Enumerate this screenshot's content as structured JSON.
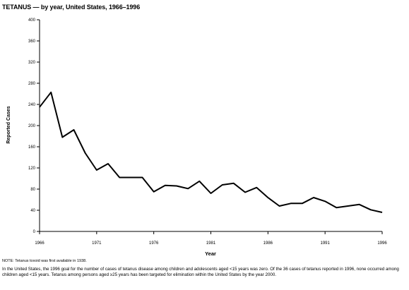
{
  "title": "TETANUS — by year, United States, 1966–1996",
  "footnote": "NOTE: Tetanus toxoid was first available in 1938.",
  "caption": "In the United States, the 1996 goal for the number of cases of tetanus disease among children and adolescents aged <15 years was zero. Of the 36 cases of tetanus reported in 1996, none occurred among children aged <15 years. Tetanus among persons aged ≥25 years has been targeted for elimination within the United States by the year 2000.",
  "chart_data": {
    "type": "line",
    "title": "TETANUS — by year, United States, 1966–1996",
    "xlabel": "Year",
    "ylabel": "Reported Cases",
    "xlim": [
      1966,
      1996
    ],
    "ylim": [
      0,
      400
    ],
    "x_ticks": [
      1966,
      1971,
      1976,
      1981,
      1986,
      1991,
      1996
    ],
    "y_ticks": [
      0,
      40,
      80,
      120,
      160,
      200,
      240,
      280,
      320,
      360,
      400
    ],
    "grid": false,
    "x": [
      1966,
      1967,
      1968,
      1969,
      1970,
      1971,
      1972,
      1973,
      1974,
      1975,
      1976,
      1977,
      1978,
      1979,
      1980,
      1981,
      1982,
      1983,
      1984,
      1985,
      1986,
      1987,
      1988,
      1989,
      1990,
      1991,
      1992,
      1993,
      1994,
      1995,
      1996
    ],
    "series": [
      {
        "values": [
          235,
          263,
          178,
          192,
          148,
          116,
          128,
          102,
          102,
          102,
          75,
          87,
          86,
          81,
          95,
          72,
          88,
          91,
          74,
          83,
          64,
          48,
          53,
          53,
          64,
          57,
          45,
          48,
          51,
          41,
          36
        ],
        "color": "#000000"
      }
    ]
  }
}
